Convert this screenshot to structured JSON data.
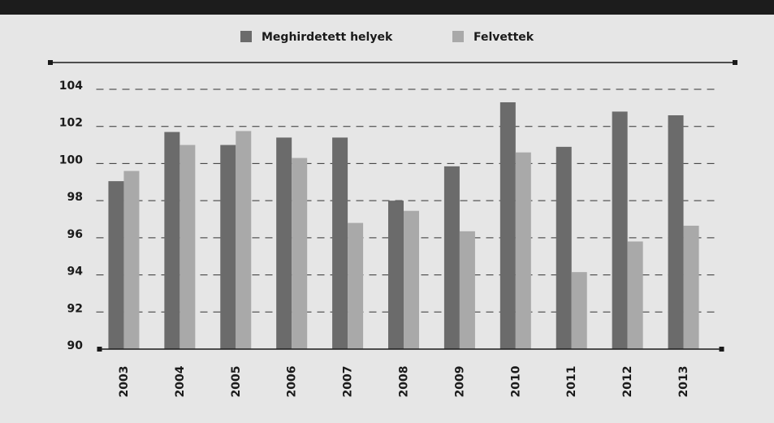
{
  "chart_data": {
    "type": "bar",
    "categories": [
      "2003",
      "2004",
      "2005",
      "2006",
      "2007",
      "2008",
      "2009",
      "2010",
      "2011",
      "2012",
      "2013"
    ],
    "series": [
      {
        "name": "Meghirdetett helyek",
        "color": "#6b6b6b",
        "values": [
          99.05,
          101.7,
          101.0,
          101.4,
          101.4,
          98.0,
          99.85,
          103.3,
          100.9,
          102.8,
          102.6
        ]
      },
      {
        "name": "Felvettek",
        "color": "#a9a9a9",
        "values": [
          99.6,
          101.0,
          101.75,
          100.3,
          96.8,
          97.45,
          96.35,
          100.6,
          94.15,
          95.8,
          96.65
        ]
      }
    ],
    "ylim": [
      90,
      104
    ],
    "yticks": [
      90,
      92,
      94,
      96,
      98,
      100,
      102,
      104
    ],
    "grid": true
  }
}
